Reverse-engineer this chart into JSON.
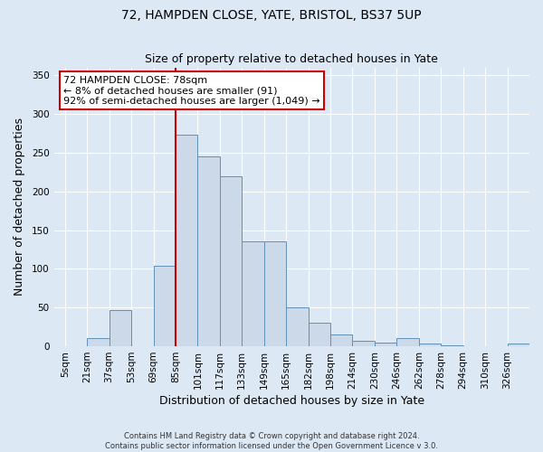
{
  "title": "72, HAMPDEN CLOSE, YATE, BRISTOL, BS37 5UP",
  "subtitle": "Size of property relative to detached houses in Yate",
  "xlabel": "Distribution of detached houses by size in Yate",
  "ylabel": "Number of detached properties",
  "bin_labels": [
    "5sqm",
    "21sqm",
    "37sqm",
    "53sqm",
    "69sqm",
    "85sqm",
    "101sqm",
    "117sqm",
    "133sqm",
    "149sqm",
    "165sqm",
    "182sqm",
    "198sqm",
    "214sqm",
    "230sqm",
    "246sqm",
    "262sqm",
    "278sqm",
    "294sqm",
    "310sqm",
    "326sqm"
  ],
  "bar_heights": [
    0,
    10,
    47,
    0,
    104,
    273,
    245,
    220,
    135,
    135,
    50,
    30,
    15,
    7,
    5,
    10,
    3,
    1,
    0,
    0,
    3
  ],
  "bar_facecolor": "#ccd9e8",
  "bar_edgecolor": "#6090b8",
  "vline_pos": 5,
  "vline_color": "#cc0000",
  "ylim": [
    0,
    360
  ],
  "yticks": [
    0,
    50,
    100,
    150,
    200,
    250,
    300,
    350
  ],
  "annotation_title": "72 HAMPDEN CLOSE: 78sqm",
  "annotation_line1": "← 8% of detached houses are smaller (91)",
  "annotation_line2": "92% of semi-detached houses are larger (1,049) →",
  "annotation_box_facecolor": "#ffffff",
  "annotation_box_edgecolor": "#cc0000",
  "footer1": "Contains HM Land Registry data © Crown copyright and database right 2024.",
  "footer2": "Contains public sector information licensed under the Open Government Licence v 3.0.",
  "bg_color": "#dce8f4",
  "plot_bg_color": "#dce8f4",
  "grid_color": "#ffffff",
  "title_fontsize": 10,
  "subtitle_fontsize": 9,
  "xlabel_fontsize": 9,
  "ylabel_fontsize": 9,
  "tick_fontsize": 7.5
}
